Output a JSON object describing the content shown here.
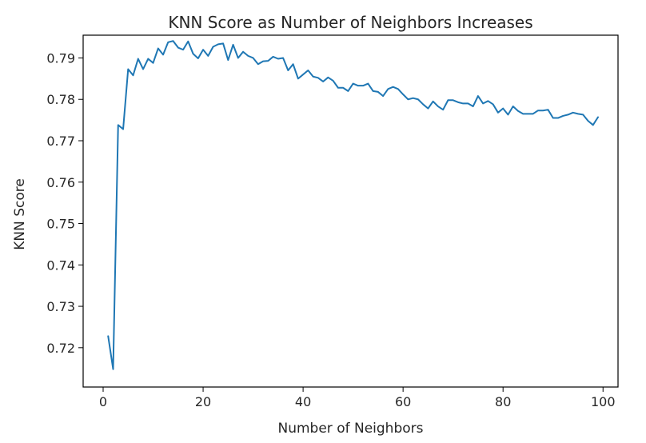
{
  "chart_data": {
    "type": "line",
    "title": "KNN Score as Number of Neighbors Increases",
    "xlabel": "Number of Neighbors",
    "ylabel": "KNN Score",
    "xlim": [
      -4,
      103
    ],
    "ylim": [
      0.7105,
      0.7955
    ],
    "xticks": [
      0,
      20,
      40,
      60,
      80,
      100
    ],
    "yticks": [
      0.72,
      0.73,
      0.74,
      0.75,
      0.76,
      0.77,
      0.78,
      0.79
    ],
    "grid": false,
    "line_color": "#1f77b4",
    "series": [
      {
        "x": [
          1,
          2,
          3,
          4,
          5,
          6,
          7,
          8,
          9,
          10,
          11,
          12,
          13,
          14,
          15,
          16,
          17,
          18,
          19,
          20,
          21,
          22,
          23,
          24,
          25,
          26,
          27,
          28,
          29,
          30,
          31,
          32,
          33,
          34,
          35,
          36,
          37,
          38,
          39,
          40,
          41,
          42,
          43,
          44,
          45,
          46,
          47,
          48,
          49,
          50,
          51,
          52,
          53,
          54,
          55,
          56,
          57,
          58,
          59,
          60,
          61,
          62,
          63,
          64,
          65,
          66,
          67,
          68,
          69,
          70,
          71,
          72,
          73,
          74,
          75,
          76,
          77,
          78,
          79,
          80,
          81,
          82,
          83,
          84,
          85,
          86,
          87,
          88,
          89,
          90,
          91,
          92,
          93,
          94,
          95,
          96,
          97,
          98,
          99
        ],
        "values": [
          0.7228,
          0.7148,
          0.7738,
          0.7728,
          0.7873,
          0.7858,
          0.7898,
          0.7873,
          0.7898,
          0.7888,
          0.7923,
          0.7908,
          0.7938,
          0.7941,
          0.7925,
          0.792,
          0.794,
          0.791,
          0.7899,
          0.792,
          0.7905,
          0.7927,
          0.7933,
          0.7935,
          0.7895,
          0.7932,
          0.79,
          0.7915,
          0.7905,
          0.79,
          0.7885,
          0.7892,
          0.7893,
          0.7903,
          0.7898,
          0.79,
          0.787,
          0.7885,
          0.785,
          0.786,
          0.787,
          0.7855,
          0.7852,
          0.7843,
          0.7853,
          0.7845,
          0.7828,
          0.7828,
          0.782,
          0.7838,
          0.7833,
          0.7833,
          0.7838,
          0.782,
          0.7818,
          0.7808,
          0.7825,
          0.783,
          0.7825,
          0.7812,
          0.78,
          0.7803,
          0.78,
          0.7788,
          0.7778,
          0.7795,
          0.7783,
          0.7775,
          0.7798,
          0.7798,
          0.7793,
          0.779,
          0.779,
          0.7783,
          0.7808,
          0.779,
          0.7796,
          0.7788,
          0.7768,
          0.7778,
          0.7763,
          0.7783,
          0.7772,
          0.7765,
          0.7765,
          0.7765,
          0.7773,
          0.7773,
          0.7775,
          0.7755,
          0.7755,
          0.776,
          0.7763,
          0.7768,
          0.7765,
          0.7763,
          0.7748,
          0.7738,
          0.7757
        ]
      }
    ]
  }
}
